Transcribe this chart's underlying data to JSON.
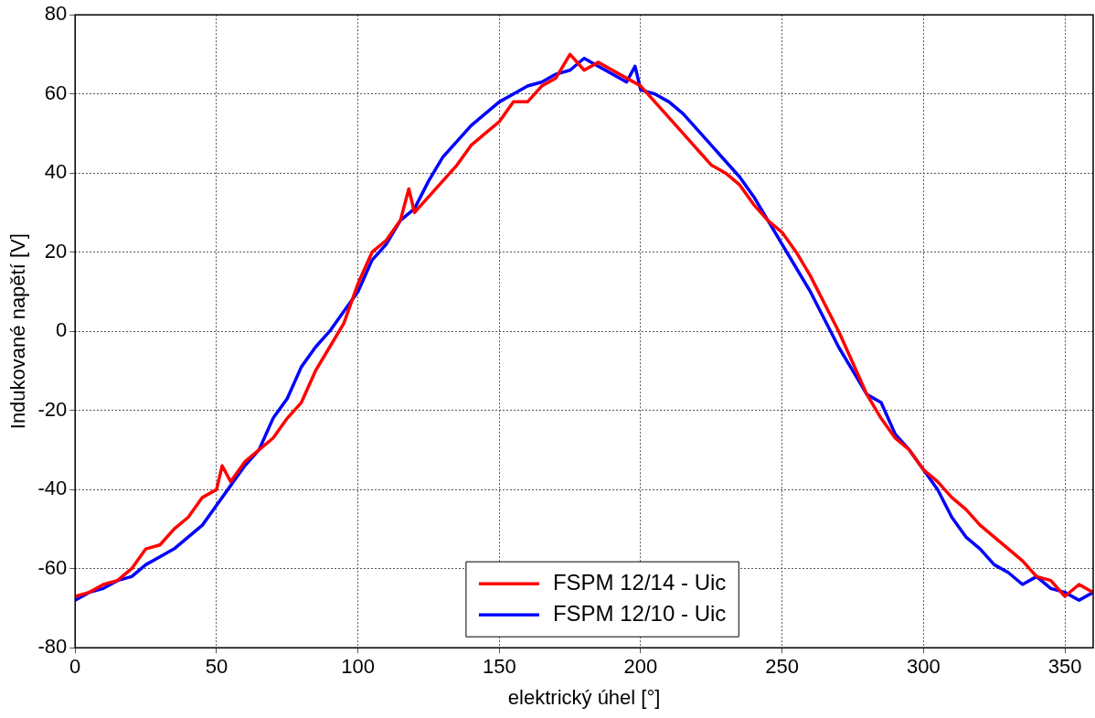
{
  "chart_data": {
    "type": "line",
    "xlabel": "elektrický úhel [°]",
    "ylabel": "Indukované napětí [V]",
    "x": [
      0,
      5,
      10,
      15,
      20,
      25,
      30,
      35,
      40,
      45,
      50,
      52,
      55,
      60,
      65,
      70,
      75,
      80,
      85,
      90,
      95,
      100,
      105,
      110,
      115,
      118,
      120,
      125,
      130,
      135,
      140,
      145,
      150,
      155,
      160,
      165,
      170,
      175,
      180,
      185,
      190,
      195,
      200,
      205,
      210,
      215,
      220,
      225,
      230,
      235,
      240,
      245,
      250,
      255,
      260,
      265,
      270,
      275,
      280,
      285,
      290,
      295,
      300,
      305,
      310,
      315,
      320,
      325,
      330,
      335,
      340,
      345,
      350,
      355,
      360
    ],
    "series": [
      {
        "name": "FSPM 12/14 - Uic",
        "color": "#ff0000",
        "values": [
          -67,
          -66,
          -64,
          -63,
          -60,
          -55,
          -54,
          -50,
          -47,
          -42,
          -40,
          -34,
          -38,
          -33,
          -30,
          -27,
          -22,
          -18,
          -10,
          -4,
          2,
          12,
          20,
          23,
          28,
          36,
          30,
          34,
          38,
          42,
          47,
          50,
          53,
          58,
          58,
          62,
          64,
          70,
          66,
          68,
          66,
          64,
          62,
          58,
          54,
          50,
          46,
          42,
          40,
          37,
          32,
          28,
          25,
          20,
          14,
          7,
          0,
          -8,
          -16,
          -22,
          -27,
          -30,
          -35,
          -38,
          -42,
          -45,
          -49,
          -52,
          -55,
          -58,
          -62,
          -63,
          -67,
          -64,
          -66
        ]
      },
      {
        "name": "FSPM 12/10 - Uic",
        "color": "#0000ff",
        "x": [
          0,
          5,
          10,
          15,
          20,
          25,
          30,
          35,
          40,
          45,
          50,
          55,
          60,
          65,
          70,
          75,
          80,
          85,
          90,
          95,
          100,
          105,
          110,
          115,
          120,
          125,
          130,
          135,
          140,
          145,
          150,
          155,
          160,
          165,
          170,
          175,
          180,
          185,
          190,
          195,
          198,
          200,
          205,
          210,
          215,
          220,
          225,
          230,
          235,
          240,
          245,
          250,
          255,
          260,
          265,
          270,
          275,
          280,
          285,
          290,
          295,
          300,
          305,
          310,
          315,
          320,
          325,
          330,
          335,
          340,
          345,
          350,
          355,
          360
        ],
        "values": [
          -68,
          -66,
          -65,
          -63,
          -62,
          -59,
          -57,
          -55,
          -52,
          -49,
          -44,
          -39,
          -34,
          -30,
          -22,
          -17,
          -9,
          -4,
          0,
          5,
          10,
          18,
          22,
          28,
          31,
          38,
          44,
          48,
          52,
          55,
          58,
          60,
          62,
          63,
          65,
          66,
          69,
          67,
          65,
          63,
          67,
          61,
          60,
          58,
          55,
          51,
          47,
          43,
          39,
          34,
          28,
          22,
          16,
          10,
          3,
          -4,
          -10,
          -16,
          -18,
          -26,
          -30,
          -35,
          -40,
          -47,
          -52,
          -55,
          -59,
          -61,
          -64,
          -62,
          -65,
          -66,
          -68,
          -66
        ]
      }
    ],
    "xlim": [
      0,
      360
    ],
    "xticks": [
      0,
      50,
      100,
      150,
      200,
      250,
      300,
      350
    ],
    "ylim": [
      -80,
      80
    ],
    "yticks": [
      -80,
      -60,
      -40,
      -20,
      0,
      20,
      40,
      60,
      80
    ],
    "grid": true,
    "legend": "bottom",
    "marker": "none",
    "line_style": "solid"
  }
}
